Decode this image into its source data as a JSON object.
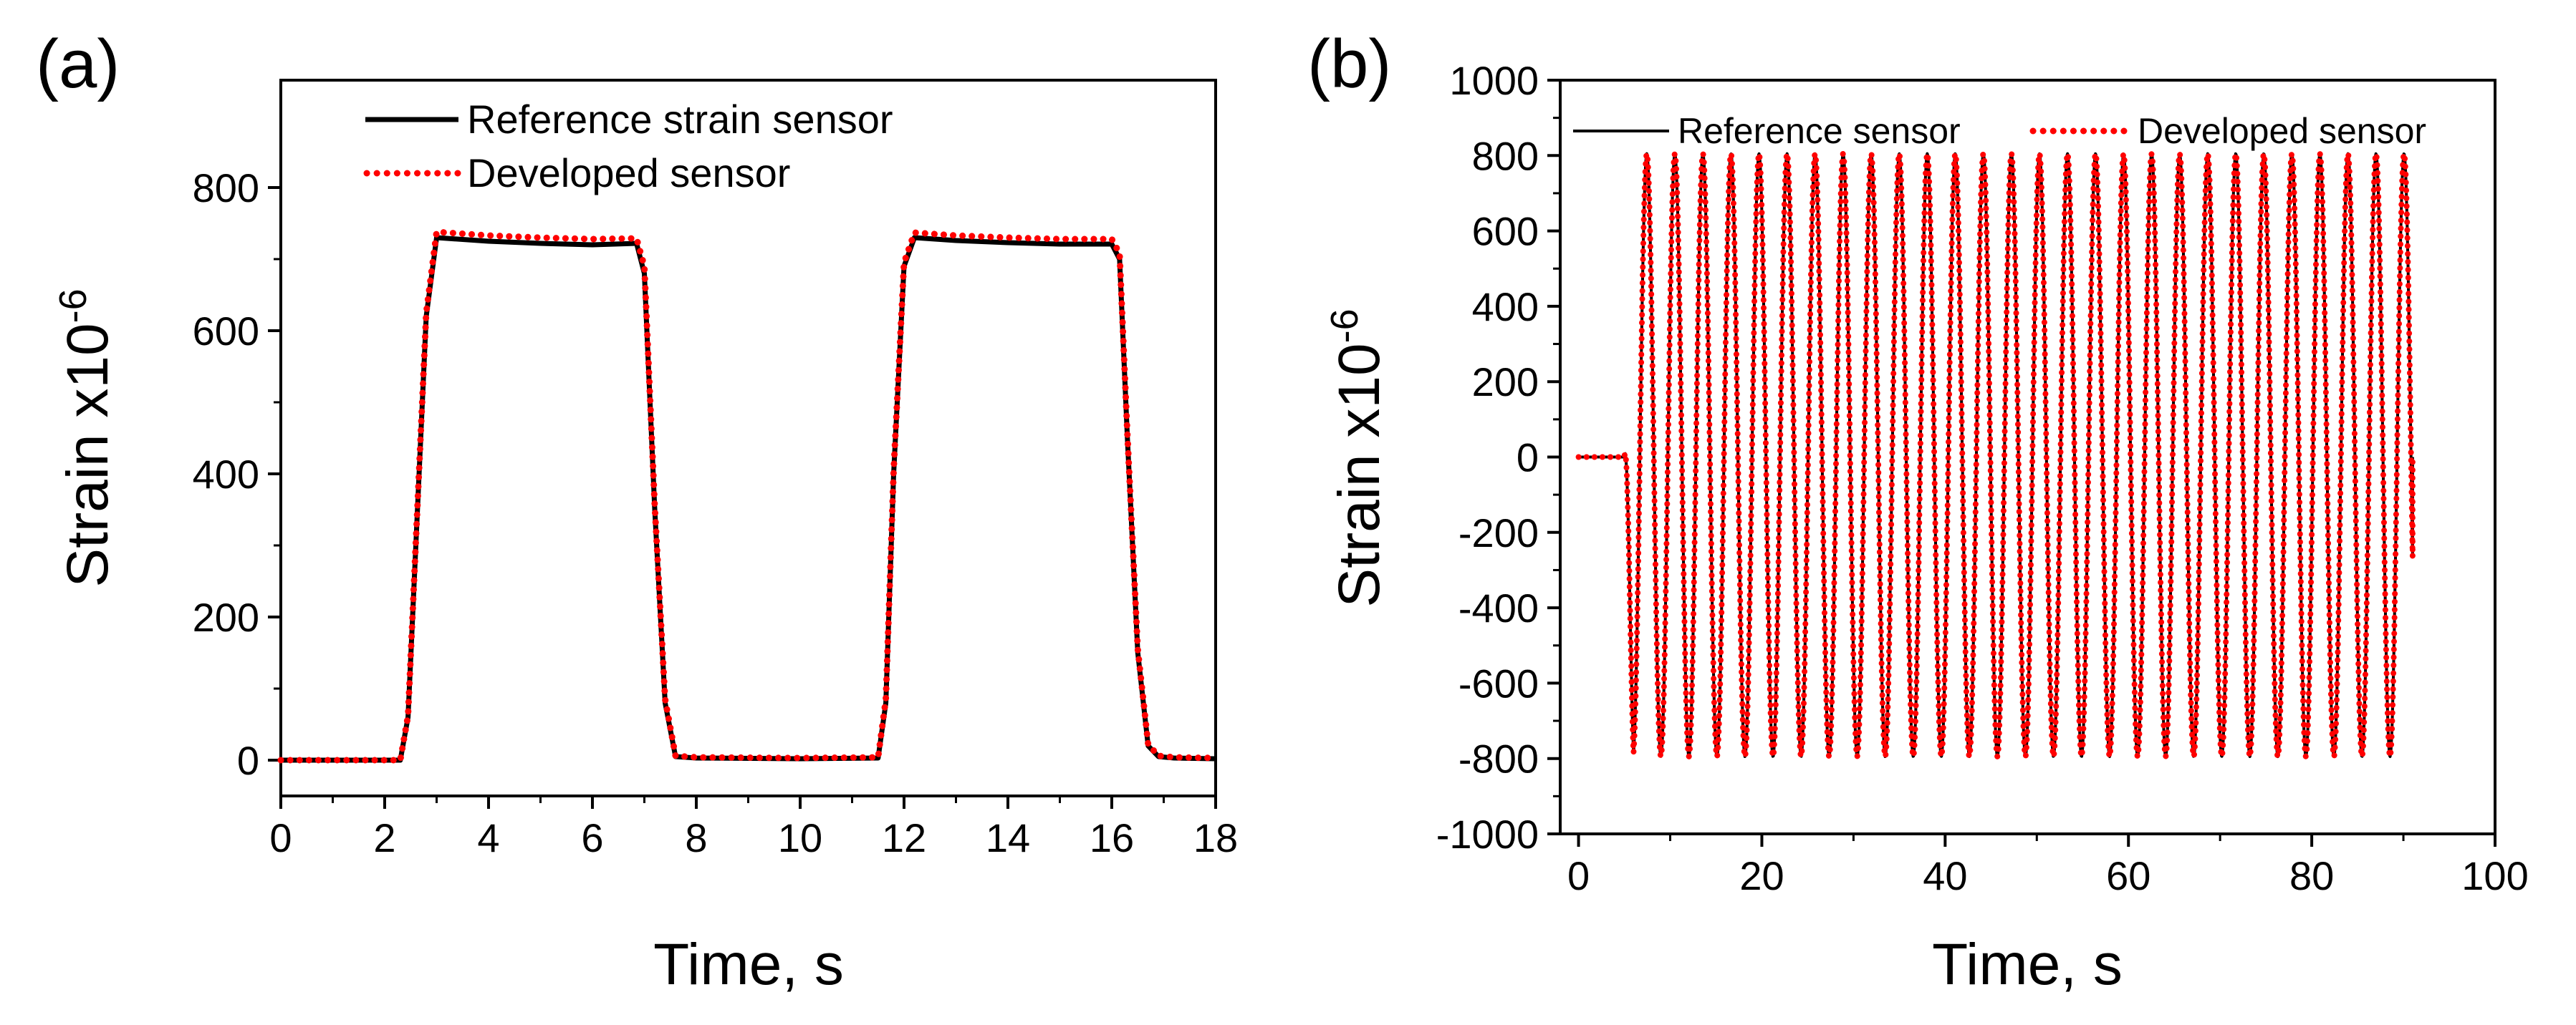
{
  "colors": {
    "reference": "#000000",
    "developed": "#ff0000",
    "axis": "#000000",
    "background": "#ffffff"
  },
  "chart_data": [
    {
      "panel": "(a)",
      "type": "line",
      "title": "",
      "xlabel": "Time, s",
      "ylabel": "Strain x10",
      "ylabel_exponent": "-6",
      "xlim": [
        0,
        18
      ],
      "ylim": [
        -50,
        950
      ],
      "xticks": [
        0,
        2,
        4,
        6,
        8,
        10,
        12,
        14,
        16,
        18
      ],
      "yticks": [
        0,
        200,
        400,
        600,
        800
      ],
      "legend": {
        "placement": "top-left",
        "entries": [
          "Reference strain sensor",
          "Developed sensor"
        ]
      },
      "series": [
        {
          "name": "Reference strain sensor",
          "style": "solid",
          "x": [
            0,
            2.3,
            2.45,
            2.6,
            2.8,
            3.0,
            4.0,
            5.0,
            6.0,
            6.85,
            7.0,
            7.2,
            7.4,
            7.6,
            8.0,
            10.0,
            11.5,
            11.65,
            11.8,
            12.0,
            12.2,
            13.0,
            14.0,
            15.0,
            16.0,
            16.15,
            16.3,
            16.5,
            16.7,
            16.9,
            17.2,
            18.0
          ],
          "y": [
            0,
            0,
            60,
            300,
            620,
            730,
            725,
            722,
            720,
            722,
            680,
            350,
            80,
            5,
            3,
            2,
            3,
            80,
            400,
            690,
            730,
            726,
            723,
            721,
            721,
            700,
            450,
            150,
            20,
            5,
            3,
            2
          ]
        },
        {
          "name": "Developed sensor",
          "style": "dotted",
          "x": [
            0,
            2.3,
            2.45,
            2.6,
            2.8,
            3.0,
            4.0,
            5.0,
            6.0,
            6.85,
            7.0,
            7.2,
            7.4,
            7.6,
            8.0,
            10.0,
            11.5,
            11.65,
            11.8,
            12.0,
            12.2,
            13.0,
            14.0,
            15.0,
            16.0,
            16.15,
            16.3,
            16.5,
            16.7,
            16.9,
            17.2,
            18.0
          ],
          "y": [
            0,
            0,
            62,
            305,
            625,
            738,
            733,
            730,
            728,
            729,
            690,
            355,
            85,
            6,
            4,
            3,
            4,
            85,
            405,
            695,
            737,
            733,
            730,
            728,
            728,
            708,
            455,
            155,
            22,
            6,
            4,
            3
          ]
        }
      ]
    },
    {
      "panel": "(b)",
      "type": "line",
      "title": "",
      "xlabel": "Time, s",
      "ylabel": "Strain x10",
      "ylabel_exponent": "-6",
      "xlim": [
        -2,
        100
      ],
      "ylim": [
        -1000,
        1000
      ],
      "xticks": [
        0,
        20,
        40,
        60,
        80,
        100
      ],
      "yticks": [
        -1000,
        -800,
        -600,
        -400,
        -200,
        0,
        200,
        400,
        600,
        800,
        1000
      ],
      "legend": {
        "placement": "top",
        "entries": [
          "Reference sensor",
          "Developed sensor"
        ]
      },
      "signal": {
        "flat_until": 5.0,
        "onset_end": 6.0,
        "period": 3.06,
        "first_peak_at": 7.45,
        "end_time": 91.0,
        "amplitude_max": 805,
        "amplitude_min": -795
      },
      "series": [
        {
          "name": "Reference sensor",
          "style": "solid"
        },
        {
          "name": "Developed sensor",
          "style": "dotted"
        }
      ]
    }
  ]
}
